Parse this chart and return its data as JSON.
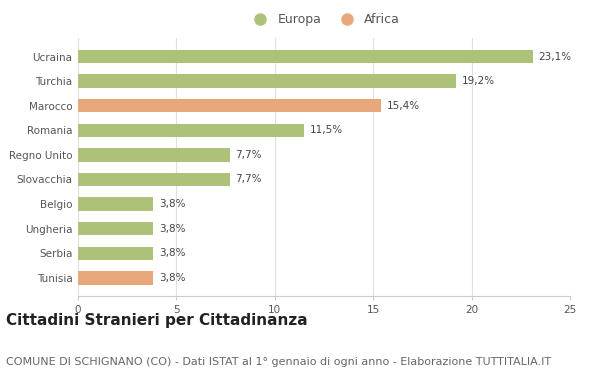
{
  "categories": [
    "Ucraina",
    "Turchia",
    "Marocco",
    "Romania",
    "Regno Unito",
    "Slovacchia",
    "Belgio",
    "Ungheria",
    "Serbia",
    "Tunisia"
  ],
  "values": [
    23.1,
    19.2,
    15.4,
    11.5,
    7.7,
    7.7,
    3.8,
    3.8,
    3.8,
    3.8
  ],
  "labels": [
    "23,1%",
    "19,2%",
    "15,4%",
    "11,5%",
    "7,7%",
    "7,7%",
    "3,8%",
    "3,8%",
    "3,8%",
    "3,8%"
  ],
  "colors": [
    "#adc178",
    "#adc178",
    "#e8a87c",
    "#adc178",
    "#adc178",
    "#adc178",
    "#adc178",
    "#adc178",
    "#adc178",
    "#e8a87c"
  ],
  "europa_color": "#adc178",
  "africa_color": "#e8a87c",
  "background_color": "#ffffff",
  "xlim": [
    0,
    25
  ],
  "xticks": [
    0,
    5,
    10,
    15,
    20,
    25
  ],
  "title": "Cittadini Stranieri per Cittadinanza",
  "subtitle": "COMUNE DI SCHIGNANO (CO) - Dati ISTAT al 1° gennaio di ogni anno - Elaborazione TUTTITALIA.IT",
  "legend_europa": "Europa",
  "legend_africa": "Africa",
  "title_fontsize": 11,
  "subtitle_fontsize": 8,
  "label_fontsize": 7.5,
  "tick_fontsize": 7.5,
  "legend_fontsize": 9,
  "bar_height": 0.55
}
